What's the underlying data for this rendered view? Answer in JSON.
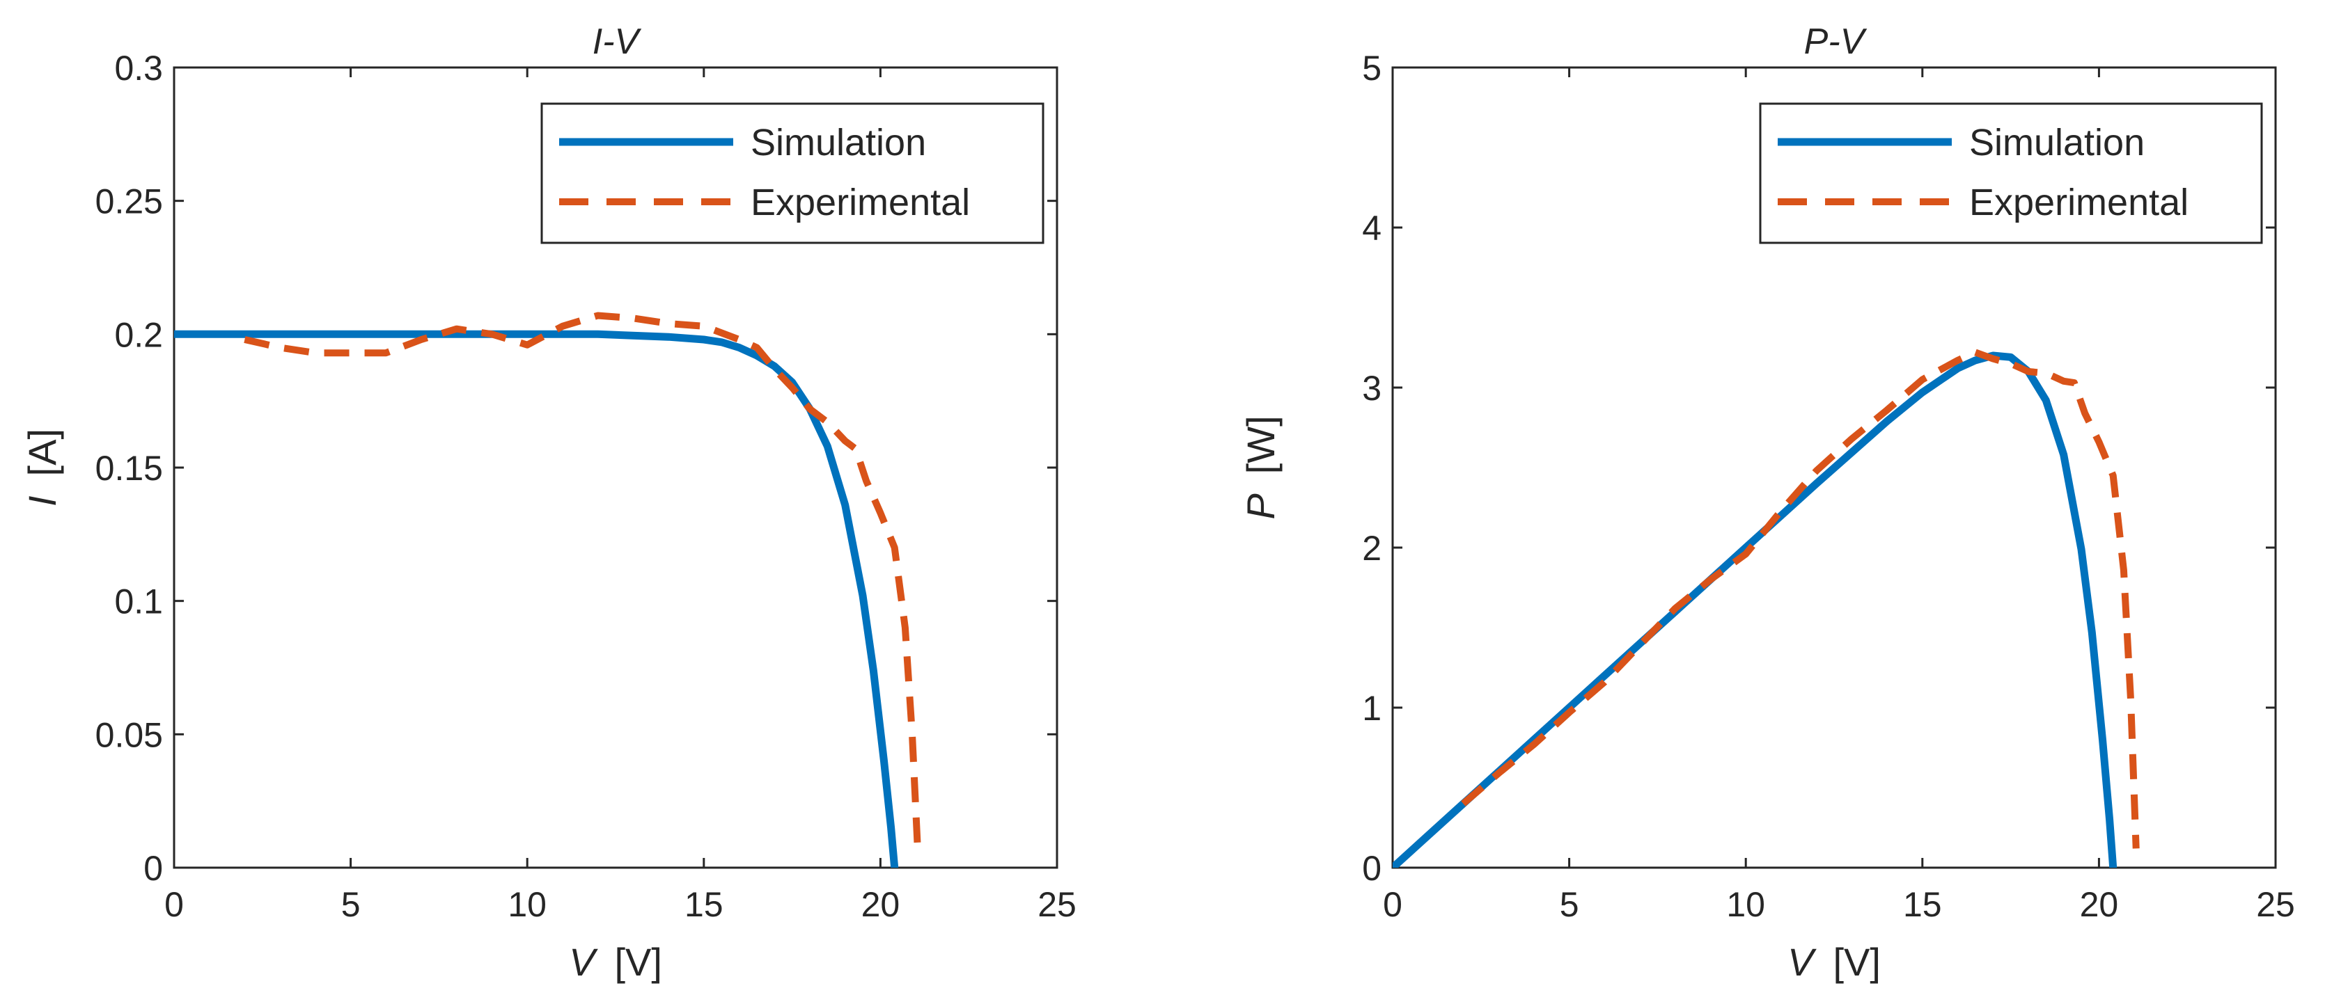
{
  "chart_data": [
    {
      "type": "line",
      "title": "I-V",
      "xlabel": {
        "symbol": "V",
        "unit": "[V]"
      },
      "ylabel": {
        "symbol": "I",
        "unit": "[A]"
      },
      "xlim": [
        0,
        25
      ],
      "ylim": [
        0,
        0.3
      ],
      "xticks": [
        0,
        5,
        10,
        15,
        20,
        25
      ],
      "xtick_labels": [
        "0",
        "5",
        "10",
        "15",
        "20",
        "25"
      ],
      "yticks": [
        0,
        0.05,
        0.1,
        0.15,
        0.2,
        0.25,
        0.3
      ],
      "ytick_labels": [
        "0",
        "0.05",
        "0.1",
        "0.15",
        "0.2",
        "0.25",
        "0.3"
      ],
      "grid": false,
      "legend_position": "top-right",
      "series": [
        {
          "name": "Simulation",
          "style": "solid",
          "color": "#0072BD",
          "x": [
            0,
            2,
            4,
            6,
            8,
            10,
            12,
            14,
            15,
            15.5,
            16,
            16.5,
            17,
            17.5,
            18,
            18.5,
            19,
            19.5,
            19.8,
            20.1,
            20.3,
            20.4
          ],
          "y": [
            0.2,
            0.2,
            0.2,
            0.2,
            0.2,
            0.2,
            0.2,
            0.199,
            0.198,
            0.197,
            0.195,
            0.192,
            0.188,
            0.182,
            0.172,
            0.158,
            0.136,
            0.102,
            0.074,
            0.04,
            0.015,
            0
          ]
        },
        {
          "name": "Experimental",
          "style": "dashed",
          "color": "#D95319",
          "x": [
            2,
            3,
            4,
            5,
            6,
            7,
            8,
            9,
            10,
            11,
            12,
            13,
            14,
            15,
            16,
            16.5,
            17,
            17.5,
            18,
            18.5,
            19,
            19.3,
            19.6,
            20,
            20.4,
            20.7,
            20.9,
            21.05
          ],
          "y": [
            0.198,
            0.195,
            0.193,
            0.193,
            0.193,
            0.198,
            0.202,
            0.2,
            0.196,
            0.203,
            0.207,
            0.206,
            0.204,
            0.203,
            0.198,
            0.195,
            0.187,
            0.18,
            0.172,
            0.167,
            0.16,
            0.157,
            0.145,
            0.133,
            0.12,
            0.09,
            0.05,
            0.008
          ]
        }
      ]
    },
    {
      "type": "line",
      "title": "P-V",
      "xlabel": {
        "symbol": "V",
        "unit": "[V]"
      },
      "ylabel": {
        "symbol": "P",
        "unit": "[W]"
      },
      "xlim": [
        0,
        25
      ],
      "ylim": [
        0,
        5
      ],
      "xticks": [
        0,
        5,
        10,
        15,
        20,
        25
      ],
      "xtick_labels": [
        "0",
        "5",
        "10",
        "15",
        "20",
        "25"
      ],
      "yticks": [
        0,
        1,
        2,
        3,
        4,
        5
      ],
      "ytick_labels": [
        "0",
        "1",
        "2",
        "3",
        "4",
        "5"
      ],
      "grid": false,
      "legend_position": "top-right",
      "series": [
        {
          "name": "Simulation",
          "style": "solid",
          "color": "#0072BD",
          "x": [
            0,
            2,
            4,
            6,
            8,
            10,
            12,
            14,
            15,
            16,
            16.5,
            17,
            17.5,
            18,
            18.5,
            19,
            19.5,
            19.8,
            20.1,
            20.3,
            20.4
          ],
          "y": [
            0,
            0.4,
            0.8,
            1.2,
            1.6,
            2.0,
            2.4,
            2.79,
            2.97,
            3.12,
            3.17,
            3.2,
            3.19,
            3.1,
            2.92,
            2.58,
            1.99,
            1.47,
            0.8,
            0.3,
            0
          ]
        },
        {
          "name": "Experimental",
          "style": "dashed",
          "color": "#D95319",
          "x": [
            2,
            3,
            4,
            5,
            6,
            7,
            8,
            9,
            10,
            11,
            12,
            13,
            14,
            15,
            16,
            16.5,
            17,
            17.5,
            18,
            18.5,
            19,
            19.3,
            19.6,
            20,
            20.4,
            20.7,
            20.9,
            21.05
          ],
          "y": [
            0.4,
            0.59,
            0.77,
            0.97,
            1.16,
            1.39,
            1.62,
            1.8,
            1.96,
            2.23,
            2.48,
            2.68,
            2.86,
            3.05,
            3.17,
            3.22,
            3.18,
            3.15,
            3.1,
            3.09,
            3.04,
            3.03,
            2.84,
            2.66,
            2.45,
            1.86,
            1.05,
            0.12
          ]
        }
      ]
    }
  ]
}
